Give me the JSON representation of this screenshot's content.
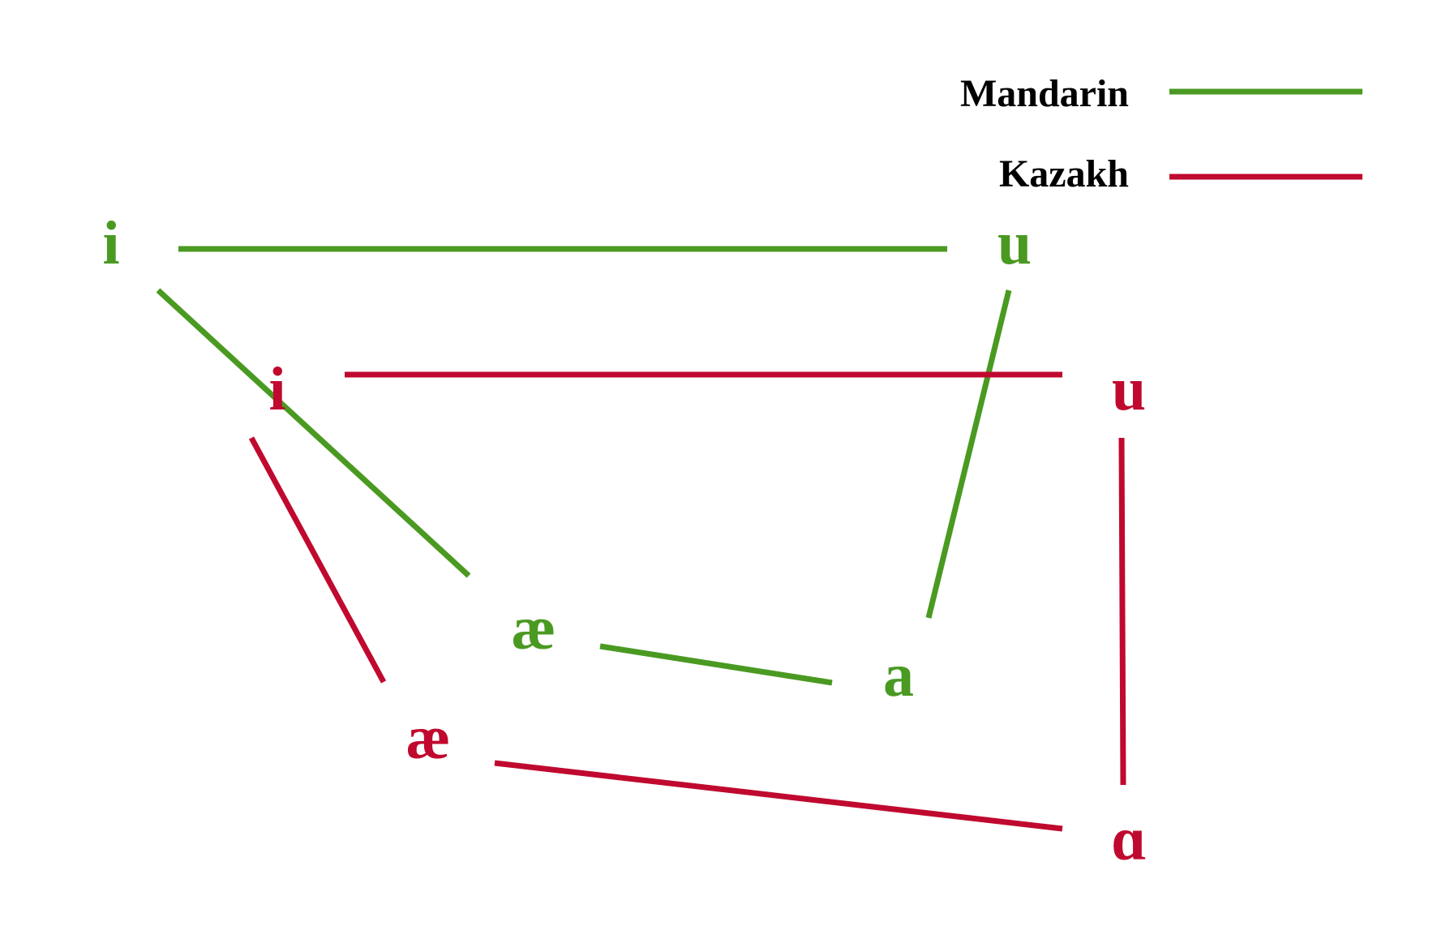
{
  "legend": {
    "items": [
      {
        "id": "mandarin",
        "label": "Mandarin",
        "color": "#4a9a22"
      },
      {
        "id": "kazakh",
        "label": "Kazakh",
        "color": "#c0092f"
      }
    ]
  },
  "vowels": {
    "mandarin": {
      "i": "i",
      "u": "u",
      "ae": "æ",
      "a": "a"
    },
    "kazakh": {
      "i": "i",
      "u": "u",
      "ae": "æ",
      "alpha": "ɑ"
    }
  },
  "edges": {
    "mandarin": [
      [
        "i",
        "u"
      ],
      [
        "i",
        "ae"
      ],
      [
        "u",
        "a"
      ],
      [
        "ae",
        "a"
      ]
    ],
    "kazakh": [
      [
        "i",
        "u"
      ],
      [
        "i",
        "ae"
      ],
      [
        "u",
        "alpha"
      ],
      [
        "ae",
        "alpha"
      ]
    ]
  }
}
